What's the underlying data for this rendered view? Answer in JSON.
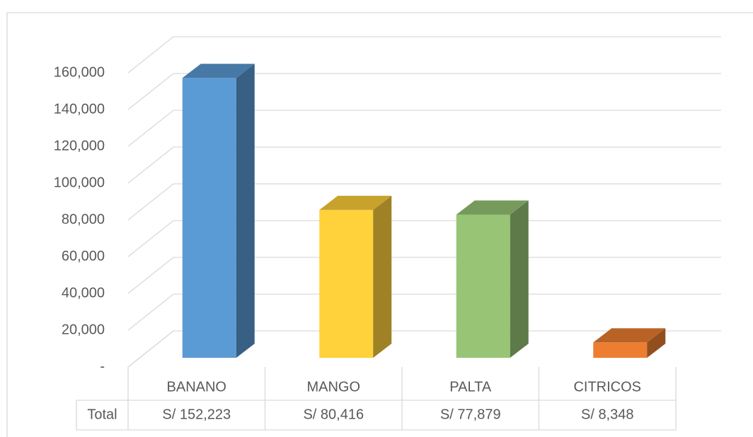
{
  "chart_data": {
    "type": "bar3d",
    "categories": [
      "BANANO",
      "MANGO",
      "PALTA",
      "CITRICOS"
    ],
    "series": [
      {
        "name": "Total",
        "values": [
          152223,
          80416,
          77879,
          8348
        ],
        "value_labels": [
          "S/ 152,223",
          "S/ 80,416",
          "S/ 77,879",
          "S/ 8,348"
        ]
      }
    ],
    "colors": [
      "#5b9bd5",
      "#ffd13b",
      "#97c575",
      "#ed7d31"
    ],
    "ylim": [
      0,
      160000
    ],
    "yticks": [
      {
        "value": 0,
        "label": "-"
      },
      {
        "value": 20000,
        "label": "20,000"
      },
      {
        "value": 40000,
        "label": "40,000"
      },
      {
        "value": 60000,
        "label": "60,000"
      },
      {
        "value": 80000,
        "label": "80,000"
      },
      {
        "value": 100000,
        "label": "100,000"
      },
      {
        "value": 120000,
        "label": "120,000"
      },
      {
        "value": 140000,
        "label": "140,000"
      },
      {
        "value": 160000,
        "label": "160,000"
      }
    ],
    "grid": true
  }
}
